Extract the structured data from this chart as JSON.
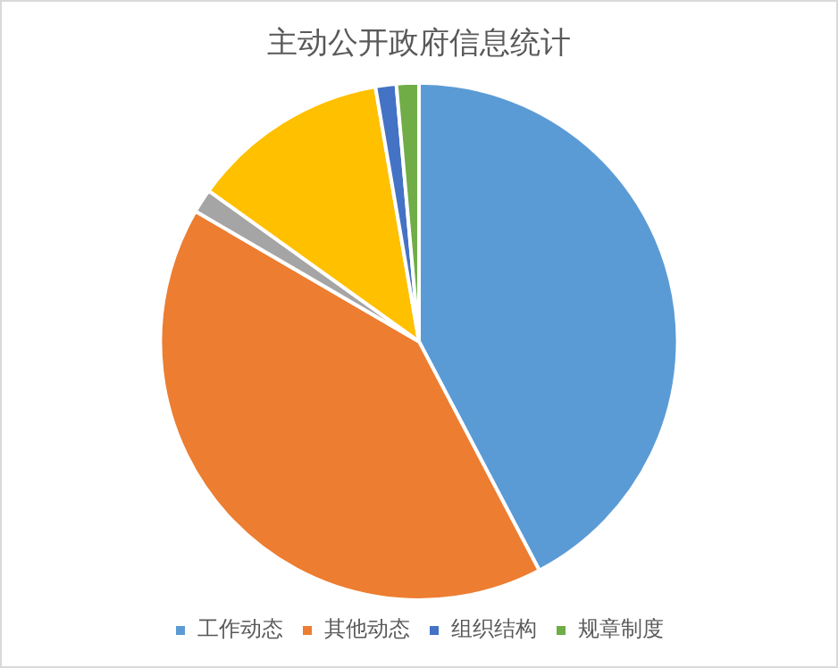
{
  "chart_data": {
    "type": "pie",
    "title": "主动公开政府信息统计",
    "categories": [
      "工作动态",
      "其他动态",
      null,
      null,
      "组织结构",
      "规章制度"
    ],
    "values": [
      42.3,
      41.1,
      1.5,
      12.4,
      1.3,
      1.4
    ],
    "colors": [
      "#5b9bd5",
      "#ed7d31",
      "#a5a5a5",
      "#ffc000",
      "#4472c4",
      "#70ad47"
    ],
    "legend": "bottom"
  }
}
